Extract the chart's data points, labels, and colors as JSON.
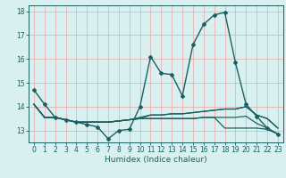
{
  "xlabel": "Humidex (Indice chaleur)",
  "background_color": "#d8f0f0",
  "grid_color": "#e8b0b0",
  "line_color": "#1a6060",
  "x_values": [
    0,
    1,
    2,
    3,
    4,
    5,
    6,
    7,
    8,
    9,
    10,
    11,
    12,
    13,
    14,
    15,
    16,
    17,
    18,
    19,
    20,
    21,
    22,
    23
  ],
  "series": [
    [
      14.7,
      14.1,
      13.55,
      13.45,
      13.35,
      13.25,
      13.15,
      12.65,
      13.0,
      13.05,
      14.0,
      16.1,
      15.4,
      15.35,
      14.45,
      16.6,
      17.45,
      17.85,
      17.95,
      15.85,
      14.1,
      13.6,
      13.1,
      12.85
    ],
    [
      14.1,
      13.55,
      13.55,
      13.45,
      13.35,
      13.35,
      13.35,
      13.35,
      13.4,
      13.45,
      13.55,
      13.65,
      13.65,
      13.7,
      13.7,
      13.75,
      13.8,
      13.85,
      13.9,
      13.9,
      14.0,
      13.65,
      13.5,
      13.1
    ],
    [
      14.1,
      13.55,
      13.55,
      13.45,
      13.35,
      13.35,
      13.35,
      13.35,
      13.4,
      13.45,
      13.5,
      13.5,
      13.5,
      13.5,
      13.5,
      13.5,
      13.55,
      13.55,
      13.1,
      13.1,
      13.1,
      13.1,
      13.05,
      12.85
    ],
    [
      14.1,
      13.55,
      13.55,
      13.45,
      13.35,
      13.35,
      13.35,
      13.35,
      13.4,
      13.45,
      13.5,
      13.5,
      13.5,
      13.5,
      13.5,
      13.5,
      13.55,
      13.55,
      13.55,
      13.55,
      13.6,
      13.3,
      13.1,
      12.85
    ],
    [
      14.1,
      13.55,
      13.55,
      13.45,
      13.35,
      13.35,
      13.35,
      13.35,
      13.4,
      13.45,
      13.5,
      13.65,
      13.65,
      13.7,
      13.7,
      13.75,
      13.8,
      13.85,
      13.9,
      13.9,
      14.0,
      13.65,
      13.5,
      13.1
    ]
  ],
  "ylim": [
    12.5,
    18.25
  ],
  "yticks": [
    13,
    14,
    15,
    16,
    17,
    18
  ],
  "xlim": [
    -0.5,
    23.5
  ],
  "xticks": [
    0,
    1,
    2,
    3,
    4,
    5,
    6,
    7,
    8,
    9,
    10,
    11,
    12,
    13,
    14,
    15,
    16,
    17,
    18,
    19,
    20,
    21,
    22,
    23
  ]
}
